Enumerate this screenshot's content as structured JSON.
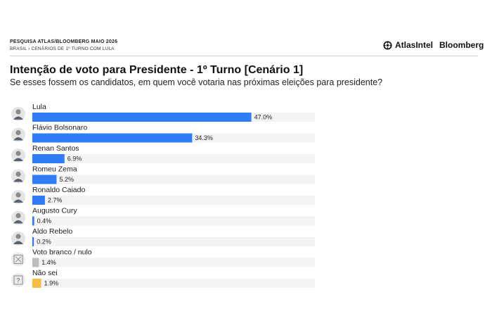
{
  "header": {
    "survey": "PESQUISA ATLAS/BLOOMBERG MAIO 2026",
    "breadcrumb": "BRASIL  ›  CENÁRIOS DE 1º TURNO COM LULA",
    "brand_atlas": "AtlasIntel",
    "brand_bloomberg": "Bloomberg"
  },
  "chart_data": {
    "type": "bar",
    "orientation": "horizontal",
    "title": "Intenção de voto para Presidente - 1º Turno [Cenário 1]",
    "subtitle": "Se esses fossem os candidatos, em quem você votaria nas próximas eleições para presidente?",
    "xlim": [
      0,
      100
    ],
    "grid": false,
    "categories": [
      "Lula",
      "Flávio Bolsonaro",
      "Renan Santos",
      "Romeu Zema",
      "Ronaldo Caiado",
      "Augusto Cury",
      "Aldo Rebelo",
      "Voto branco / nulo",
      "Não sei"
    ],
    "values": [
      47.0,
      34.3,
      6.9,
      5.2,
      2.7,
      0.4,
      0.2,
      1.4,
      1.9
    ],
    "value_labels": [
      "47.0%",
      "34.3%",
      "6.9%",
      "5.2%",
      "2.7%",
      "0.4%",
      "0.2%",
      "1.4%",
      "1.9%"
    ],
    "colors": [
      "#2f7cf6",
      "#2f7cf6",
      "#2f7cf6",
      "#2f7cf6",
      "#2f7cf6",
      "#2f7cf6",
      "#2f7cf6",
      "#bdbdbd",
      "#f4bd3f"
    ],
    "track_color": "#f3f3f3",
    "avatar_icons": [
      "person-avatar-icon",
      "person-avatar-icon",
      "person-avatar-icon",
      "person-avatar-icon",
      "person-avatar-icon",
      "person-avatar-icon",
      "person-avatar-icon",
      "blank-vote-icon",
      "question-mark-icon"
    ]
  }
}
